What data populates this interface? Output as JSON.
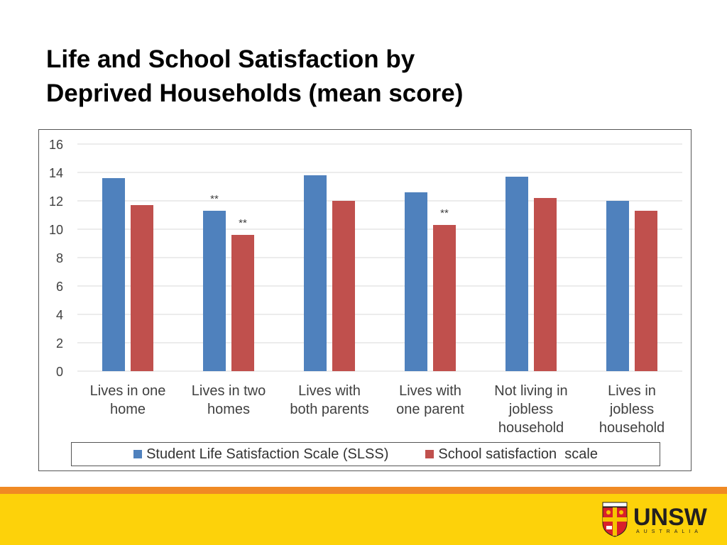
{
  "slide": {
    "title_line1": "Life and School Satisfaction by",
    "title_line2": "Deprived Households (mean score)"
  },
  "colors": {
    "slss": "#4f81bd",
    "school": "#c0504d",
    "orange_band": "#f08a24",
    "yellow_band": "#fdd20a"
  },
  "logo": {
    "word": "UNSW",
    "sub": "AUSTRALIA"
  },
  "chart_data": {
    "type": "bar",
    "categories": [
      [
        "Lives in one",
        "home"
      ],
      [
        "Lives in two",
        "homes"
      ],
      [
        "Lives with",
        "both parents"
      ],
      [
        "Lives with",
        "one parent"
      ],
      [
        "Not living in",
        "jobless",
        "household"
      ],
      [
        "Lives in",
        "jobless",
        "household"
      ]
    ],
    "series": [
      {
        "name": "Student Life Satisfaction Scale (SLSS)",
        "values": [
          13.6,
          11.3,
          13.8,
          12.6,
          13.7,
          12.0
        ],
        "annotations": [
          "",
          "**",
          "",
          "",
          "",
          ""
        ]
      },
      {
        "name": "School satisfaction  scale",
        "values": [
          11.7,
          9.6,
          12.0,
          10.3,
          12.2,
          11.3
        ],
        "annotations": [
          "",
          "**",
          "",
          "**",
          "",
          ""
        ]
      }
    ],
    "ylim": [
      0,
      16
    ],
    "yticks": [
      0,
      2,
      4,
      6,
      8,
      10,
      12,
      14,
      16
    ],
    "grid": true,
    "legend_position": "bottom",
    "title": "",
    "xlabel": "",
    "ylabel": ""
  }
}
